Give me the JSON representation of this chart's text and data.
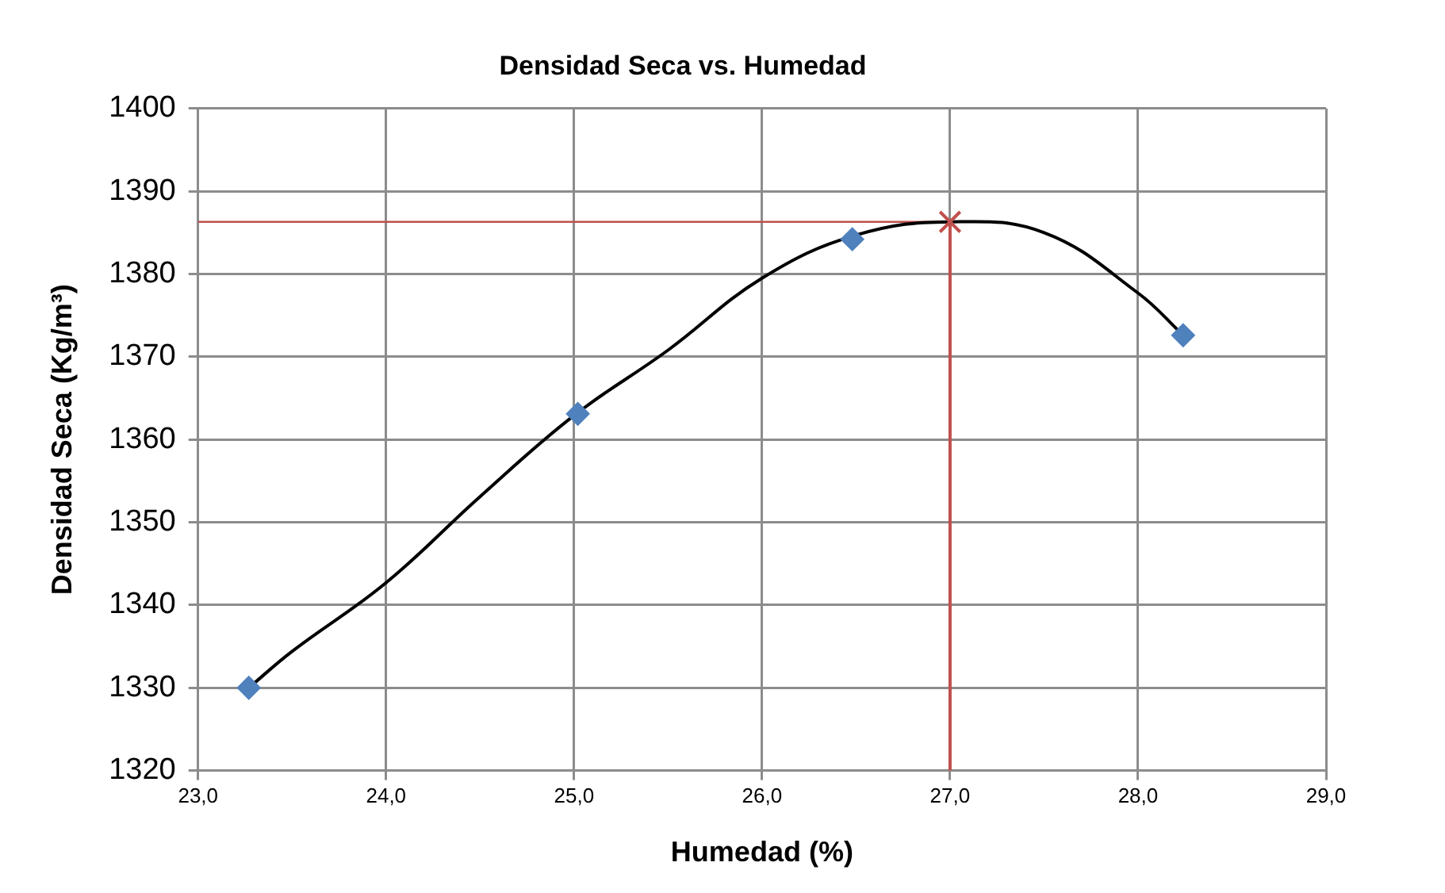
{
  "chart_data": {
    "type": "scatter",
    "title": "Densidad Seca vs. Humedad",
    "xlabel": "Humedad (%)",
    "ylabel": "Densidad Seca (Kg/m³)",
    "xlim": [
      23,
      29
    ],
    "xticks": [
      {
        "value": 23,
        "label": "23,0"
      },
      {
        "value": 24,
        "label": "24,0"
      },
      {
        "value": 25,
        "label": "25,0"
      },
      {
        "value": 26,
        "label": "26,0"
      },
      {
        "value": 27,
        "label": "27,0"
      },
      {
        "value": 28,
        "label": "28,0"
      },
      {
        "value": 29,
        "label": "29,0"
      }
    ],
    "ylim": [
      1320,
      1400
    ],
    "yticks": [
      1320,
      1330,
      1340,
      1350,
      1360,
      1370,
      1380,
      1390,
      1400
    ],
    "grid": true,
    "legend": false,
    "series": [
      {
        "type": "line",
        "color": "#000000",
        "marker": "none",
        "x": [
          23.27,
          23.5,
          24,
          24.5,
          25,
          25.5,
          26,
          26.5,
          27,
          27.5,
          28,
          28.24
        ],
        "values": [
          1330,
          1334.4,
          1342.7,
          1353.1,
          1362.9,
          1370.8,
          1379.5,
          1384.7,
          1386.3,
          1385,
          1377.7,
          1372.6
        ]
      },
      {
        "type": "scatter",
        "color": "#4f81bd",
        "marker": "diamond",
        "x": [
          23.27,
          25.02,
          26.48,
          28.24
        ],
        "values": [
          1330,
          1363.1,
          1384.2,
          1372.6
        ]
      },
      {
        "type": "scatter",
        "color": "#c0504d",
        "marker": "cross",
        "x": [
          27
        ],
        "values": [
          1386.3
        ]
      }
    ],
    "ref_lines": [
      {
        "axis": "y",
        "value": 1386.3,
        "color": "#c0504d"
      },
      {
        "axis": "x",
        "value": 27,
        "color": "#c0504d"
      }
    ]
  }
}
